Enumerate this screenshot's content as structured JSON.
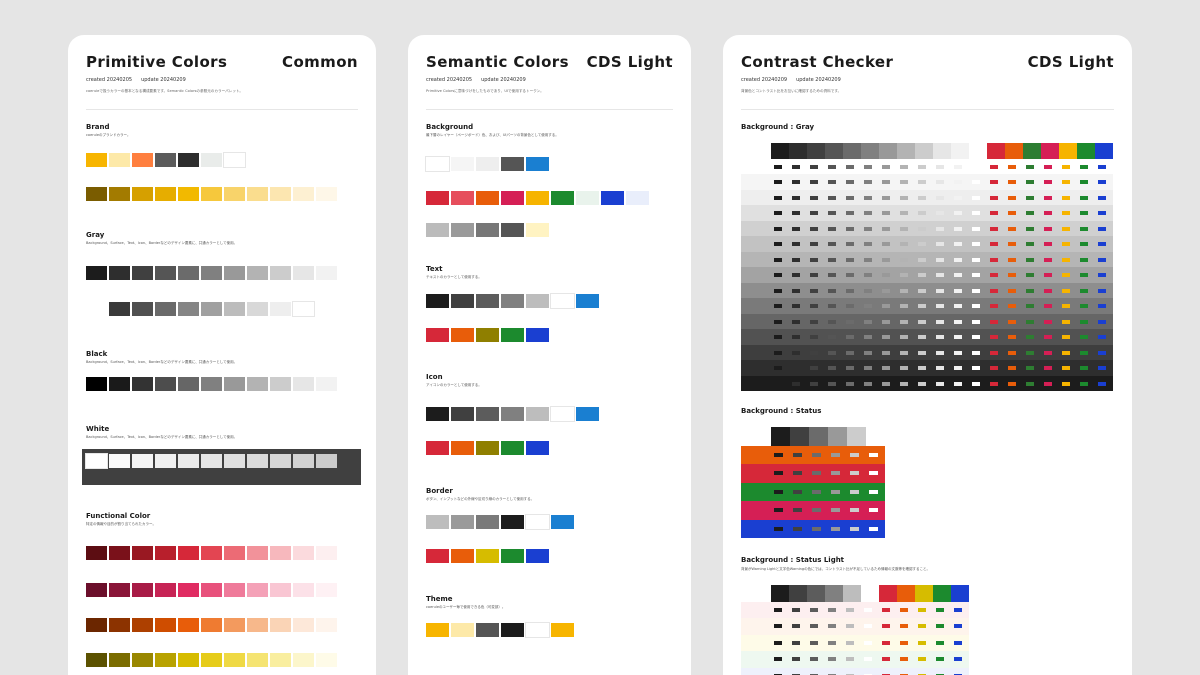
{
  "cards": [
    {
      "title": "Primitive Colors",
      "tag": "Common",
      "created": "created 20240205",
      "updated": "update 20240209",
      "desc": "coeruleで扱うカラーの基本となる構成要素です。Semantic Colorsの参照元のカラーパレット。",
      "sections": [
        {
          "title": "Brand",
          "desc": "coeruleのブランドカラー。"
        },
        {
          "title": "Gray",
          "desc": "Background、Surface、Text、Icon、Borderなどのデザイン要素に、共通カラーとして使用。"
        },
        {
          "title": "Black",
          "desc": "Background、Surface、Text、Icon、Borderなどのデザイン要素に、共通カラーとして使用。"
        },
        {
          "title": "White",
          "desc": "Background、Surface、Text、Icon、Borderなどのデザイン要素に、共通カラーとして使用。"
        },
        {
          "title": "Functional Color",
          "desc": "特定の情報や目的が割り当てられたカラー。"
        }
      ]
    },
    {
      "title": "Semantic Colors",
      "tag": "CDS Light",
      "created": "created 20240205",
      "updated": "update 20240209",
      "desc": "Primitive Colorsに意味づけをしたものであり、UIで使用するトークン。",
      "sections": [
        {
          "title": "Background",
          "desc": "最下層のレイヤー（ページボード）色、および、UIパーツの背景色として使用する。"
        },
        {
          "title": "Text",
          "desc": "テキストのカラーとして使用する。"
        },
        {
          "title": "Icon",
          "desc": "アイコンのカラーとして使用する。"
        },
        {
          "title": "Border",
          "desc": "ボタン、インプットなどの外線や区切り線のカラーとして使用する。"
        },
        {
          "title": "Theme",
          "desc": "coeruleのユーザー毎で使用できる色（可変部）。"
        }
      ]
    },
    {
      "title": "Contrast Checker",
      "tag": "CDS Light",
      "created": "created 20240209",
      "updated": "update 20240209",
      "desc": "背景色とコントラスト比をお互いに確認するための資料です。",
      "sections": [
        {
          "title": "Background : Gray"
        },
        {
          "title": "Background : Status"
        },
        {
          "title": "Background : Status Light",
          "desc": "背景がWarning Lightと文字色Warningの色にでは、コントラスト比が不足しているため情報の文脈等を確認すること。"
        }
      ]
    }
  ],
  "colors": {
    "brand": [
      "#f7b500",
      "#fde9a8",
      "#ff7f3f",
      "#5c5c5c",
      "#2e2e2e",
      "#e9ecea",
      "#ffffff"
    ],
    "brandTint": [
      "#7a5c00",
      "#a37b00",
      "#d6a000",
      "#e6ad00",
      "#f2b900",
      "#f6c83c",
      "#f8d36a",
      "#fadd8e",
      "#fce6b0",
      "#fdf0d2",
      "#fef7e8"
    ],
    "gray": [
      "#1c1c1c",
      "#2e2e2e",
      "#404040",
      "#555555",
      "#6b6b6b",
      "#808080",
      "#999999",
      "#b3b3b3",
      "#cccccc",
      "#e6e6e6",
      "#f2f2f2"
    ],
    "grayAlpha": [
      "#3a3a3a",
      "#505050",
      "#6a6a6a",
      "#858585",
      "#a0a0a0",
      "#bcbcbc",
      "#d8d8d8",
      "#eeeeee",
      "#ffffff"
    ],
    "black": [
      "#000000",
      "#1a1a1a",
      "#333333",
      "#4d4d4d",
      "#666666",
      "#808080",
      "#999999",
      "#b3b3b3",
      "#cccccc",
      "#e6e6e6",
      "#f2f2f2"
    ],
    "white": [
      "#ffffff",
      "#fafafa",
      "#f5f5f5",
      "#f0f0f0",
      "#ebebeb",
      "#e6e6e6",
      "#e0e0e0",
      "#dbdbdb",
      "#d6d6d6",
      "#d1d1d1",
      "#cccccc"
    ],
    "red": [
      "#5c0d12",
      "#7a111a",
      "#991822",
      "#b81f2c",
      "#d62839",
      "#e34552",
      "#ec6b75",
      "#f2929a",
      "#f7b8bd",
      "#fbdadd",
      "#fdeff0"
    ],
    "pink": [
      "#6b0f2b",
      "#8a1538",
      "#a81b46",
      "#c72455",
      "#e02c62",
      "#e8517c",
      "#ef7a9a",
      "#f4a1b7",
      "#f9c6d3",
      "#fce1e8",
      "#fef1f4"
    ],
    "orange": [
      "#6b2600",
      "#8c3300",
      "#ad4000",
      "#cf4d00",
      "#e85d0a",
      "#ef7b31",
      "#f39a5e",
      "#f7b88b",
      "#fad4b6",
      "#fde8d9",
      "#fef4ec"
    ],
    "yellow": [
      "#5c5200",
      "#7a6c00",
      "#998700",
      "#b8a200",
      "#d6bc00",
      "#e6cc1a",
      "#efd944",
      "#f5e472",
      "#f9ee9f",
      "#fcf6cb",
      "#fefbe8"
    ],
    "semBg1": [
      "#ffffff",
      "#f5f5f5",
      "#eeeeee",
      "#555555",
      "#1a7fd1"
    ],
    "semBg2": [
      "#d62839",
      "#e64e5c",
      "#e85d0a",
      "#d51f55",
      "#f6b400",
      "#1c8a2e",
      "#e9f3ec",
      "#1a3fd1",
      "#e9eefb"
    ],
    "semBg3": [
      "#bbbbbb",
      "#9a9a9a",
      "#777777",
      "#555555",
      "#fff3c2"
    ],
    "semText1": [
      "#1c1c1c",
      "#404040",
      "#5c5c5c",
      "#808080",
      "#bdbdbd",
      "#ffffff",
      "#1a7fd1"
    ],
    "semText2": [
      "#d62839",
      "#e85d0a",
      "#8f7f00",
      "#1c8a2e",
      "#1a3fd1"
    ],
    "semIcon1": [
      "#1c1c1c",
      "#404040",
      "#5c5c5c",
      "#808080",
      "#bdbdbd",
      "#ffffff",
      "#1a7fd1"
    ],
    "semIcon2": [
      "#d62839",
      "#e85d0a",
      "#8f7f00",
      "#1c8a2e",
      "#1a3fd1"
    ],
    "semBorder1": [
      "#bdbdbd",
      "#9a9a9a",
      "#7a7a7a",
      "#1c1c1c",
      "#ffffff",
      "#1a7fd1"
    ],
    "semBorder2": [
      "#d62839",
      "#e85d0a",
      "#d6bc00",
      "#1c8a2e",
      "#1a3fd1"
    ],
    "theme": [
      "#f7b500",
      "#fde9a8",
      "#555555",
      "#1c1c1c",
      "#ffffff",
      "#f7b500"
    ],
    "ccHeader": [
      "#1c1c1c",
      "#2e2e2e",
      "#404040",
      "#555555",
      "#6b6b6b",
      "#808080",
      "#999999",
      "#b3b3b3",
      "#cccccc",
      "#e6e6e6",
      "#f2f2f2",
      "#ffffff",
      "#d62839",
      "#e85d0a",
      "#2e7d32",
      "#d51f55",
      "#f6b400",
      "#1c8a2e",
      "#1a3fd1"
    ],
    "ccRows": [
      "#ffffff",
      "#f5f5f5",
      "#eeeeee",
      "#e0e0e0",
      "#d0d0d0",
      "#c2c2c2",
      "#b5b5b5",
      "#a3a3a3",
      "#8e8e8e",
      "#7a7a7a",
      "#666666",
      "#525252",
      "#3e3e3e",
      "#2e2e2e",
      "#1c1c1c"
    ],
    "statusRows": [
      "#e85d0a",
      "#d62839",
      "#1c8a2e",
      "#d51f55",
      "#1a3fd1"
    ],
    "statusHeader": [
      "#1c1c1c",
      "#404040",
      "#6b6b6b",
      "#999999",
      "#cccccc",
      "#ffffff"
    ],
    "slHeader": [
      "#1c1c1c",
      "#404040",
      "#5c5c5c",
      "#808080",
      "#bdbdbd",
      "#ffffff",
      "#d62839",
      "#e85d0a",
      "#d6bc00",
      "#1c8a2e",
      "#1a3fd1"
    ],
    "slRows": [
      "#fdeff0",
      "#fef4ec",
      "#fefbe8",
      "#eef8f0",
      "#eef1fc"
    ]
  }
}
